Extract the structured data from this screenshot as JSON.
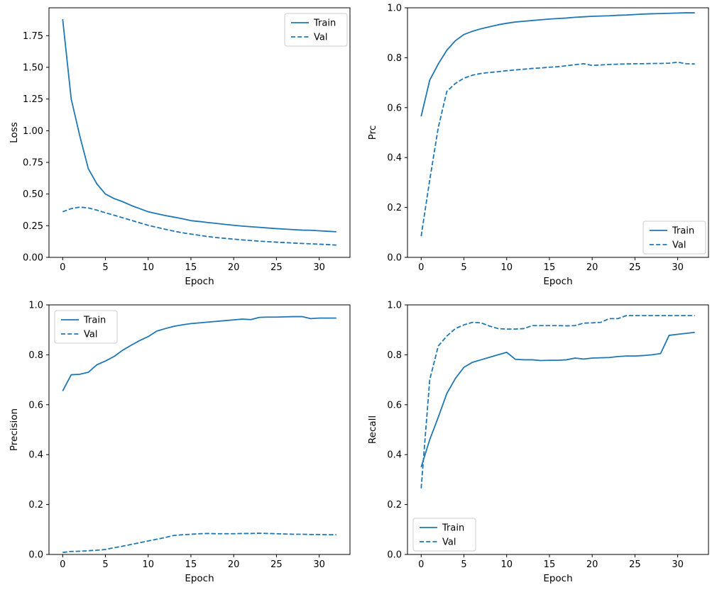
{
  "figure": {
    "name": "training-metrics-figure",
    "background": "#ffffff",
    "line_color": "#1f77b4",
    "spine_color": "#000000",
    "text_color": "#000000",
    "legend_border": "#cccccc",
    "legend_fill": "#ffffff"
  },
  "chart_data": [
    {
      "type": "line",
      "title": "",
      "xlabel": "Epoch",
      "ylabel": "Loss",
      "xlim": [
        -1.6,
        33.6
      ],
      "ylim": [
        0,
        1.97
      ],
      "xticks": [
        0,
        5,
        10,
        15,
        20,
        25,
        30
      ],
      "xtick_labels": [
        "0",
        "5",
        "10",
        "15",
        "20",
        "25",
        "30"
      ],
      "yticks": [
        0,
        0.25,
        0.5,
        0.75,
        1.0,
        1.25,
        1.5,
        1.75
      ],
      "ytick_labels": [
        "0.00",
        "0.25",
        "0.50",
        "0.75",
        "1.00",
        "1.25",
        "1.50",
        "1.75"
      ],
      "grid": false,
      "legend_pos": "upper right",
      "x": [
        0,
        1,
        2,
        3,
        4,
        5,
        6,
        7,
        8,
        9,
        10,
        11,
        12,
        13,
        14,
        15,
        16,
        17,
        18,
        19,
        20,
        21,
        22,
        23,
        24,
        25,
        26,
        27,
        28,
        29,
        30,
        31,
        32
      ],
      "series": [
        {
          "name": "Train",
          "style": "solid",
          "values": [
            1.88,
            1.25,
            0.96,
            0.7,
            0.58,
            0.5,
            0.465,
            0.44,
            0.41,
            0.385,
            0.36,
            0.345,
            0.33,
            0.318,
            0.305,
            0.29,
            0.283,
            0.275,
            0.268,
            0.26,
            0.253,
            0.247,
            0.242,
            0.237,
            0.232,
            0.227,
            0.223,
            0.219,
            0.215,
            0.214,
            0.21,
            0.206,
            0.202
          ]
        },
        {
          "name": "Val",
          "style": "dashed",
          "values": [
            0.36,
            0.385,
            0.397,
            0.39,
            0.373,
            0.352,
            0.333,
            0.313,
            0.293,
            0.273,
            0.253,
            0.237,
            0.222,
            0.207,
            0.194,
            0.184,
            0.174,
            0.164,
            0.156,
            0.15,
            0.144,
            0.138,
            0.133,
            0.128,
            0.124,
            0.12,
            0.117,
            0.113,
            0.11,
            0.107,
            0.104,
            0.101,
            0.097
          ]
        }
      ]
    },
    {
      "type": "line",
      "title": "",
      "xlabel": "Epoch",
      "ylabel": "Prc",
      "xlim": [
        -1.6,
        33.6
      ],
      "ylim": [
        0,
        1.0
      ],
      "xticks": [
        0,
        5,
        10,
        15,
        20,
        25,
        30
      ],
      "xtick_labels": [
        "0",
        "5",
        "10",
        "15",
        "20",
        "25",
        "30"
      ],
      "yticks": [
        0,
        0.2,
        0.4,
        0.6,
        0.8,
        1.0
      ],
      "ytick_labels": [
        "0.0",
        "0.2",
        "0.4",
        "0.6",
        "0.8",
        "1.0"
      ],
      "grid": false,
      "legend_pos": "lower right",
      "x": [
        0,
        1,
        2,
        3,
        4,
        5,
        6,
        7,
        8,
        9,
        10,
        11,
        12,
        13,
        14,
        15,
        16,
        17,
        18,
        19,
        20,
        21,
        22,
        23,
        24,
        25,
        26,
        27,
        28,
        29,
        30,
        31,
        32
      ],
      "series": [
        {
          "name": "Train",
          "style": "solid",
          "values": [
            0.565,
            0.71,
            0.775,
            0.83,
            0.868,
            0.893,
            0.906,
            0.916,
            0.924,
            0.932,
            0.938,
            0.943,
            0.946,
            0.949,
            0.952,
            0.955,
            0.957,
            0.959,
            0.962,
            0.964,
            0.966,
            0.967,
            0.968,
            0.97,
            0.971,
            0.973,
            0.975,
            0.976,
            0.977,
            0.978,
            0.979,
            0.98,
            0.98
          ]
        },
        {
          "name": "Val",
          "style": "dashed",
          "values": [
            0.085,
            0.31,
            0.52,
            0.665,
            0.697,
            0.718,
            0.73,
            0.737,
            0.741,
            0.744,
            0.748,
            0.751,
            0.754,
            0.757,
            0.759,
            0.762,
            0.764,
            0.768,
            0.772,
            0.776,
            0.769,
            0.771,
            0.773,
            0.774,
            0.775,
            0.776,
            0.776,
            0.777,
            0.777,
            0.778,
            0.782,
            0.776,
            0.775
          ]
        }
      ]
    },
    {
      "type": "line",
      "title": "",
      "xlabel": "Epoch",
      "ylabel": "Precision",
      "xlim": [
        -1.6,
        33.6
      ],
      "ylim": [
        0,
        1.0
      ],
      "xticks": [
        0,
        5,
        10,
        15,
        20,
        25,
        30
      ],
      "xtick_labels": [
        "0",
        "5",
        "10",
        "15",
        "20",
        "25",
        "30"
      ],
      "yticks": [
        0,
        0.2,
        0.4,
        0.6,
        0.8,
        1.0
      ],
      "ytick_labels": [
        "0.0",
        "0.2",
        "0.4",
        "0.6",
        "0.8",
        "1.0"
      ],
      "grid": false,
      "legend_pos": "upper left",
      "x": [
        0,
        1,
        2,
        3,
        4,
        5,
        6,
        7,
        8,
        9,
        10,
        11,
        12,
        13,
        14,
        15,
        16,
        17,
        18,
        19,
        20,
        21,
        22,
        23,
        24,
        25,
        26,
        27,
        28,
        29,
        30,
        31,
        32
      ],
      "series": [
        {
          "name": "Train",
          "style": "solid",
          "values": [
            0.655,
            0.72,
            0.722,
            0.73,
            0.76,
            0.775,
            0.793,
            0.818,
            0.838,
            0.857,
            0.873,
            0.895,
            0.905,
            0.914,
            0.92,
            0.925,
            0.928,
            0.931,
            0.934,
            0.937,
            0.94,
            0.943,
            0.941,
            0.95,
            0.951,
            0.951,
            0.952,
            0.953,
            0.953,
            0.945,
            0.947,
            0.947,
            0.947
          ]
        },
        {
          "name": "Val",
          "style": "dashed",
          "values": [
            0.008,
            0.012,
            0.013,
            0.015,
            0.017,
            0.02,
            0.027,
            0.033,
            0.04,
            0.047,
            0.054,
            0.061,
            0.068,
            0.076,
            0.079,
            0.081,
            0.083,
            0.084,
            0.083,
            0.083,
            0.083,
            0.084,
            0.084,
            0.085,
            0.084,
            0.083,
            0.082,
            0.081,
            0.081,
            0.08,
            0.08,
            0.079,
            0.079
          ]
        }
      ]
    },
    {
      "type": "line",
      "title": "",
      "xlabel": "Epoch",
      "ylabel": "Recall",
      "xlim": [
        -1.6,
        33.6
      ],
      "ylim": [
        0,
        1.0
      ],
      "xticks": [
        0,
        5,
        10,
        15,
        20,
        25,
        30
      ],
      "xtick_labels": [
        "0",
        "5",
        "10",
        "15",
        "20",
        "25",
        "30"
      ],
      "yticks": [
        0,
        0.2,
        0.4,
        0.6,
        0.8,
        1.0
      ],
      "ytick_labels": [
        "0.0",
        "0.2",
        "0.4",
        "0.6",
        "0.8",
        "1.0"
      ],
      "grid": false,
      "legend_pos": "lower left",
      "x": [
        0,
        1,
        2,
        3,
        4,
        5,
        6,
        7,
        8,
        9,
        10,
        11,
        12,
        13,
        14,
        15,
        16,
        17,
        18,
        19,
        20,
        21,
        22,
        23,
        24,
        25,
        26,
        27,
        28,
        29,
        30,
        31,
        32
      ],
      "series": [
        {
          "name": "Train",
          "style": "solid",
          "values": [
            0.35,
            0.46,
            0.55,
            0.645,
            0.705,
            0.75,
            0.77,
            0.78,
            0.79,
            0.8,
            0.81,
            0.782,
            0.78,
            0.78,
            0.777,
            0.778,
            0.778,
            0.78,
            0.787,
            0.783,
            0.787,
            0.788,
            0.789,
            0.793,
            0.795,
            0.795,
            0.797,
            0.8,
            0.805,
            0.878,
            0.882,
            0.886,
            0.89
          ]
        },
        {
          "name": "Val",
          "style": "dashed",
          "values": [
            0.265,
            0.7,
            0.835,
            0.875,
            0.905,
            0.92,
            0.93,
            0.928,
            0.915,
            0.905,
            0.903,
            0.903,
            0.905,
            0.917,
            0.917,
            0.917,
            0.917,
            0.916,
            0.917,
            0.927,
            0.928,
            0.93,
            0.945,
            0.945,
            0.957,
            0.957,
            0.957,
            0.957,
            0.957,
            0.957,
            0.957,
            0.957,
            0.957
          ]
        }
      ]
    }
  ]
}
